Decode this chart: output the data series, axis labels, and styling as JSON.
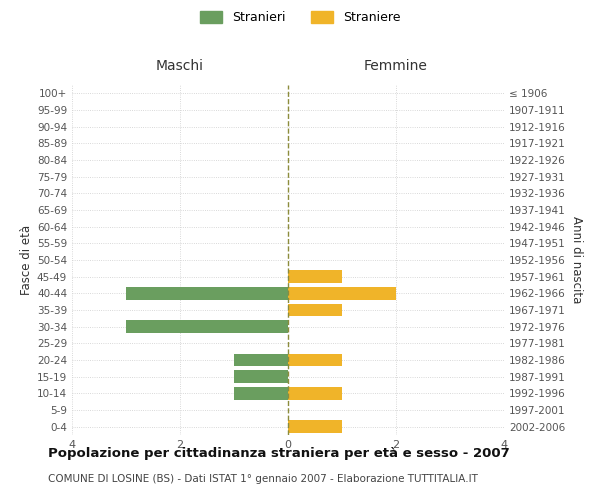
{
  "age_groups": [
    "0-4",
    "5-9",
    "10-14",
    "15-19",
    "20-24",
    "25-29",
    "30-34",
    "35-39",
    "40-44",
    "45-49",
    "50-54",
    "55-59",
    "60-64",
    "65-69",
    "70-74",
    "75-79",
    "80-84",
    "85-89",
    "90-94",
    "95-99",
    "100+"
  ],
  "birth_years": [
    "2002-2006",
    "1997-2001",
    "1992-1996",
    "1987-1991",
    "1982-1986",
    "1977-1981",
    "1972-1976",
    "1967-1971",
    "1962-1966",
    "1957-1961",
    "1952-1956",
    "1947-1951",
    "1942-1946",
    "1937-1941",
    "1932-1936",
    "1927-1931",
    "1922-1926",
    "1917-1921",
    "1912-1916",
    "1907-1911",
    "≤ 1906"
  ],
  "males": [
    0,
    0,
    1,
    1,
    1,
    0,
    3,
    0,
    3,
    0,
    0,
    0,
    0,
    0,
    0,
    0,
    0,
    0,
    0,
    0,
    0
  ],
  "females": [
    1,
    0,
    1,
    0,
    1,
    0,
    0,
    1,
    2,
    1,
    0,
    0,
    0,
    0,
    0,
    0,
    0,
    0,
    0,
    0,
    0
  ],
  "male_color": "#6a9e5f",
  "female_color": "#f0b429",
  "center_line_color": "#8c8c3c",
  "grid_color": "#cccccc",
  "bg_color": "#ffffff",
  "title": "Popolazione per cittadinanza straniera per età e sesso - 2007",
  "subtitle": "COMUNE DI LOSINE (BS) - Dati ISTAT 1° gennaio 2007 - Elaborazione TUTTITALIA.IT",
  "xlabel_left": "Maschi",
  "xlabel_right": "Femmine",
  "ylabel_left": "Fasce di età",
  "ylabel_right": "Anni di nascita",
  "legend_males": "Stranieri",
  "legend_females": "Straniere",
  "xlim": 4,
  "bar_height": 0.75
}
